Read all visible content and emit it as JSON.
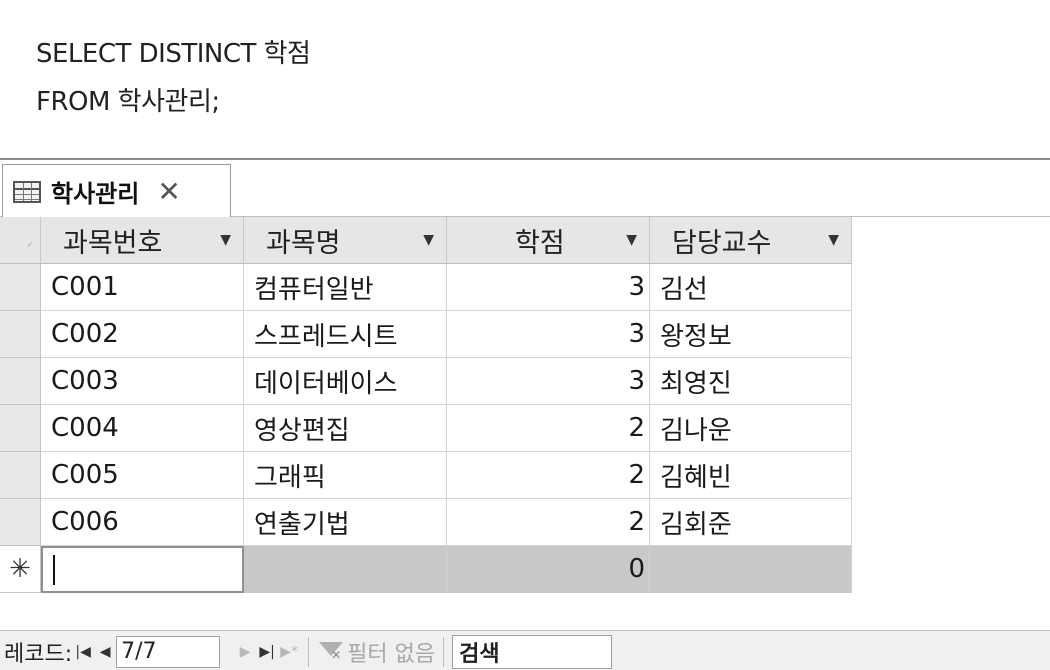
{
  "sql": {
    "line1": "SELECT DISTINCT 학점",
    "line2": "FROM 학사관리;"
  },
  "tab": {
    "icon": "table-icon",
    "label": "학사관리",
    "close": "✕"
  },
  "table": {
    "columns": [
      "과목번호",
      "과목명",
      "학점",
      "담당교수"
    ],
    "rows": [
      {
        "code": "C001",
        "name": "컴퓨터일반",
        "credit": "3",
        "prof": "김선"
      },
      {
        "code": "C002",
        "name": "스프레드시트",
        "credit": "3",
        "prof": "왕정보"
      },
      {
        "code": "C003",
        "name": "데이터베이스",
        "credit": "3",
        "prof": "최영진"
      },
      {
        "code": "C004",
        "name": "영상편집",
        "credit": "2",
        "prof": "김나운"
      },
      {
        "code": "C005",
        "name": "그래픽",
        "credit": "2",
        "prof": "김혜빈"
      },
      {
        "code": "C006",
        "name": "연출기법",
        "credit": "2",
        "prof": "김회준"
      }
    ],
    "new_row": {
      "marker": "✳",
      "credit": "0"
    }
  },
  "statusbar": {
    "record_label": "레코드:",
    "record_value": "7/7",
    "filter_label": "필터 없음",
    "search_label": "검색"
  }
}
